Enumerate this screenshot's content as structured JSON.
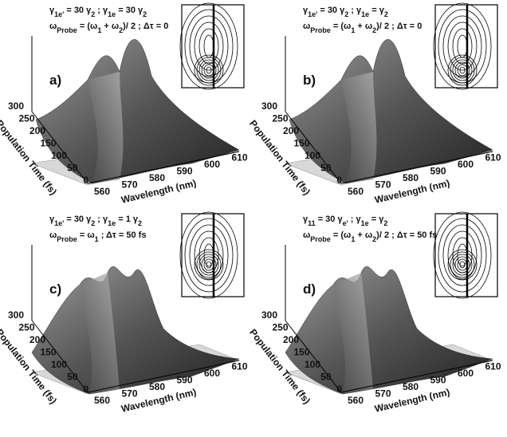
{
  "panels": [
    {
      "label": "a)",
      "params": [
        [
          "γ",
          "1e'",
          " = 30 γ",
          "2",
          " ; γ",
          "1e",
          " = 30 γ",
          "2"
        ],
        [
          "ω",
          "Probe",
          " = (ω",
          "1",
          " + ω",
          "2",
          ")/ 2 ; Δτ = 0"
        ]
      ],
      "y_axis": {
        "label": "Population Time (fs)",
        "ticks": [
          "300",
          "250",
          "200",
          "150",
          "100",
          "50",
          "0"
        ]
      },
      "x_axis": {
        "label": "Wavelength (nm)",
        "ticks": [
          "560",
          "570",
          "580",
          "590",
          "600",
          "610"
        ]
      }
    },
    {
      "label": "b)",
      "params": [
        [
          "γ",
          "1e'",
          " = 30 γ",
          "2",
          " ; γ",
          "1e",
          " = γ",
          "2"
        ],
        [
          "ω",
          "Probe",
          " = (ω",
          "1",
          " + ω",
          "2",
          ")/ 2 ; Δτ = 0"
        ]
      ],
      "y_axis": {
        "label": "Population Time (fs)",
        "ticks": [
          "300",
          "250",
          "200",
          "150",
          "100",
          "50",
          "0"
        ]
      },
      "x_axis": {
        "label": "Wavelength (nm)",
        "ticks": [
          "560",
          "570",
          "580",
          "590",
          "600",
          "610"
        ]
      }
    },
    {
      "label": "c)",
      "params": [
        [
          "γ",
          "1e'",
          " = 30 γ",
          "2",
          " ; γ",
          "1e",
          " = 1 γ",
          "2"
        ],
        [
          "ω",
          "Probe",
          " = ω",
          "1",
          " ; Δτ = 50 fs"
        ]
      ],
      "y_axis": {
        "label": "Population Time (fs)",
        "ticks": [
          "300",
          "250",
          "200",
          "150",
          "100",
          "50",
          "0"
        ]
      },
      "x_axis": {
        "label": "Wavelength (nm)",
        "ticks": [
          "560",
          "570",
          "580",
          "590",
          "600",
          "610"
        ]
      }
    },
    {
      "label": "d)",
      "params": [
        [
          "γ",
          "11",
          " = 30 γ",
          "e'",
          " ; γ",
          "1e",
          " = γ",
          "2"
        ],
        [
          "ω",
          "Probe",
          " = (ω",
          "1",
          " + ω",
          "2",
          ")/ 2 ; Δτ = 50 fs"
        ]
      ],
      "y_axis": {
        "label": "Population Time (fs)",
        "ticks": [
          "300",
          "250",
          "200",
          "150",
          "100",
          "50",
          "0"
        ]
      },
      "x_axis": {
        "label": "Wavelength (nm)",
        "ticks": [
          "560",
          "570",
          "580",
          "590",
          "600",
          "610"
        ]
      }
    }
  ]
}
